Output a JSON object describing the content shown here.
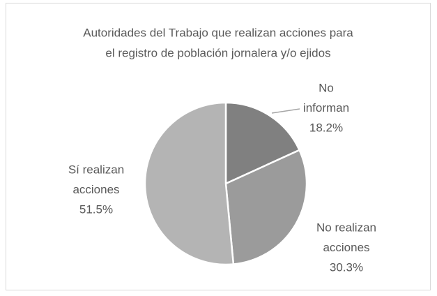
{
  "chart_data": {
    "type": "pie",
    "title": [
      "Autoridades del Trabajo que realizan acciones para",
      "el registro de población jornalera y/o ejidos"
    ],
    "categories": [
      [
        "No",
        "informan"
      ],
      [
        "No realizan",
        "acciones"
      ],
      [
        "Sí realizan",
        "acciones"
      ]
    ],
    "values": [
      18.2,
      30.3,
      51.5
    ],
    "value_labels": [
      "18.2%",
      "30.3%",
      "51.5%"
    ],
    "colors": [
      "#808080",
      "#9b9b9b",
      "#b4b4b4"
    ]
  }
}
